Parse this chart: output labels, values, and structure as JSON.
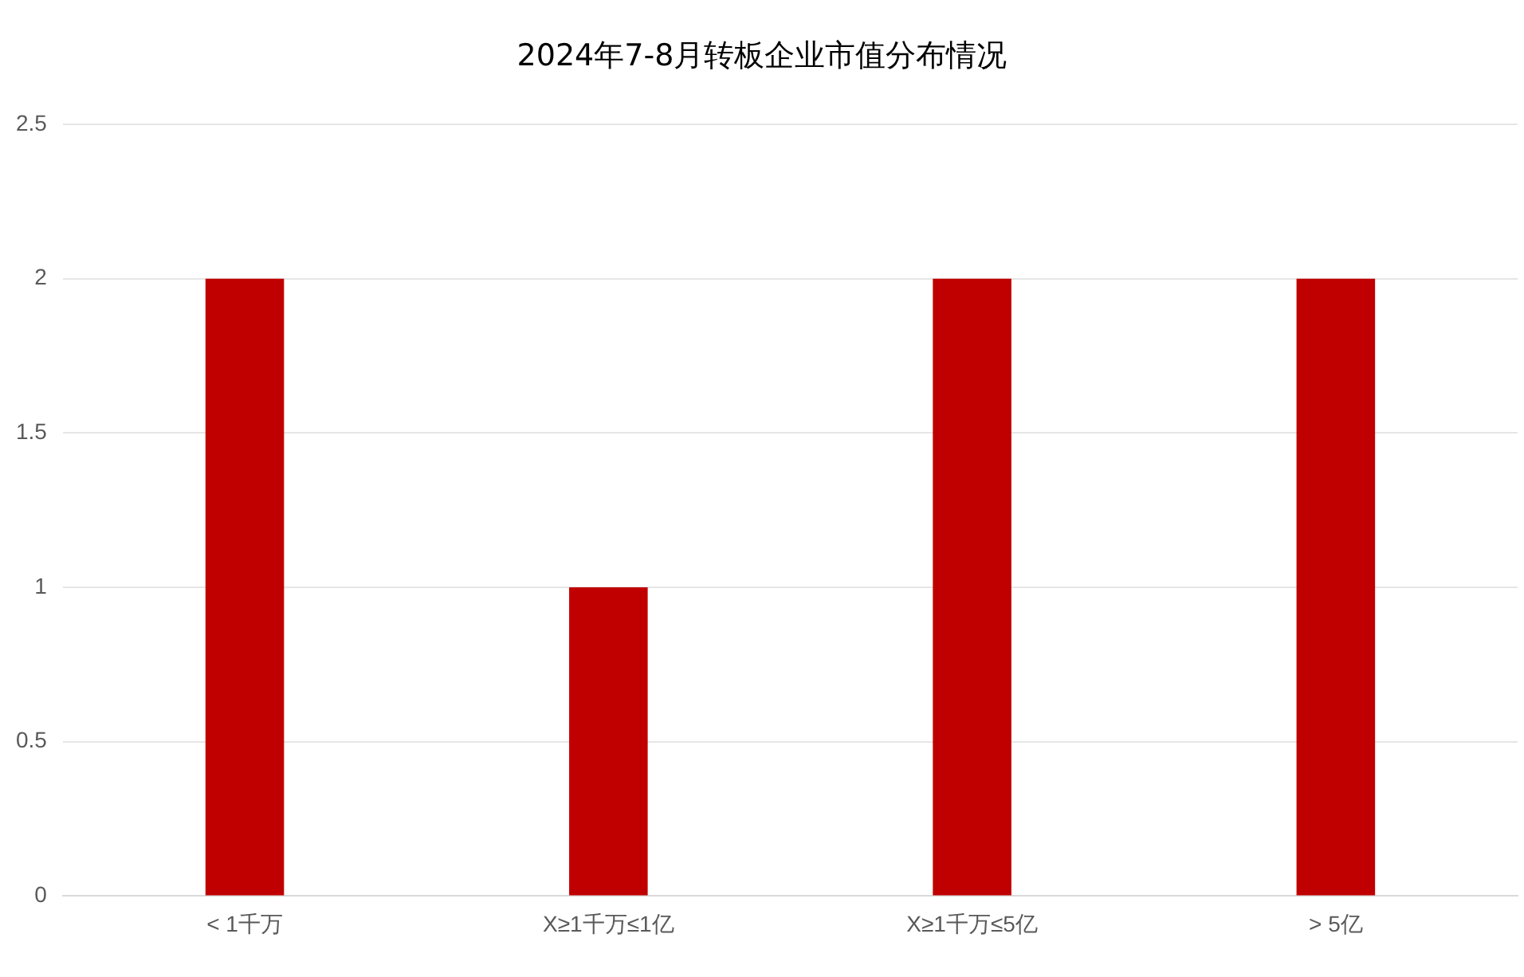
{
  "chart_data": {
    "type": "bar",
    "title": "2024年7-8月转板企业市值分布情况",
    "categories": [
      "< 1千万",
      "X≥1千万≤1亿",
      "X≥1千万≤5亿",
      "> 5亿"
    ],
    "values": [
      2,
      1,
      2,
      2
    ],
    "color": "#c00000",
    "ylim": [
      0,
      2.5
    ],
    "yticks": [
      0,
      0.5,
      1,
      1.5,
      2,
      2.5
    ],
    "grid": "y",
    "legend": false
  }
}
